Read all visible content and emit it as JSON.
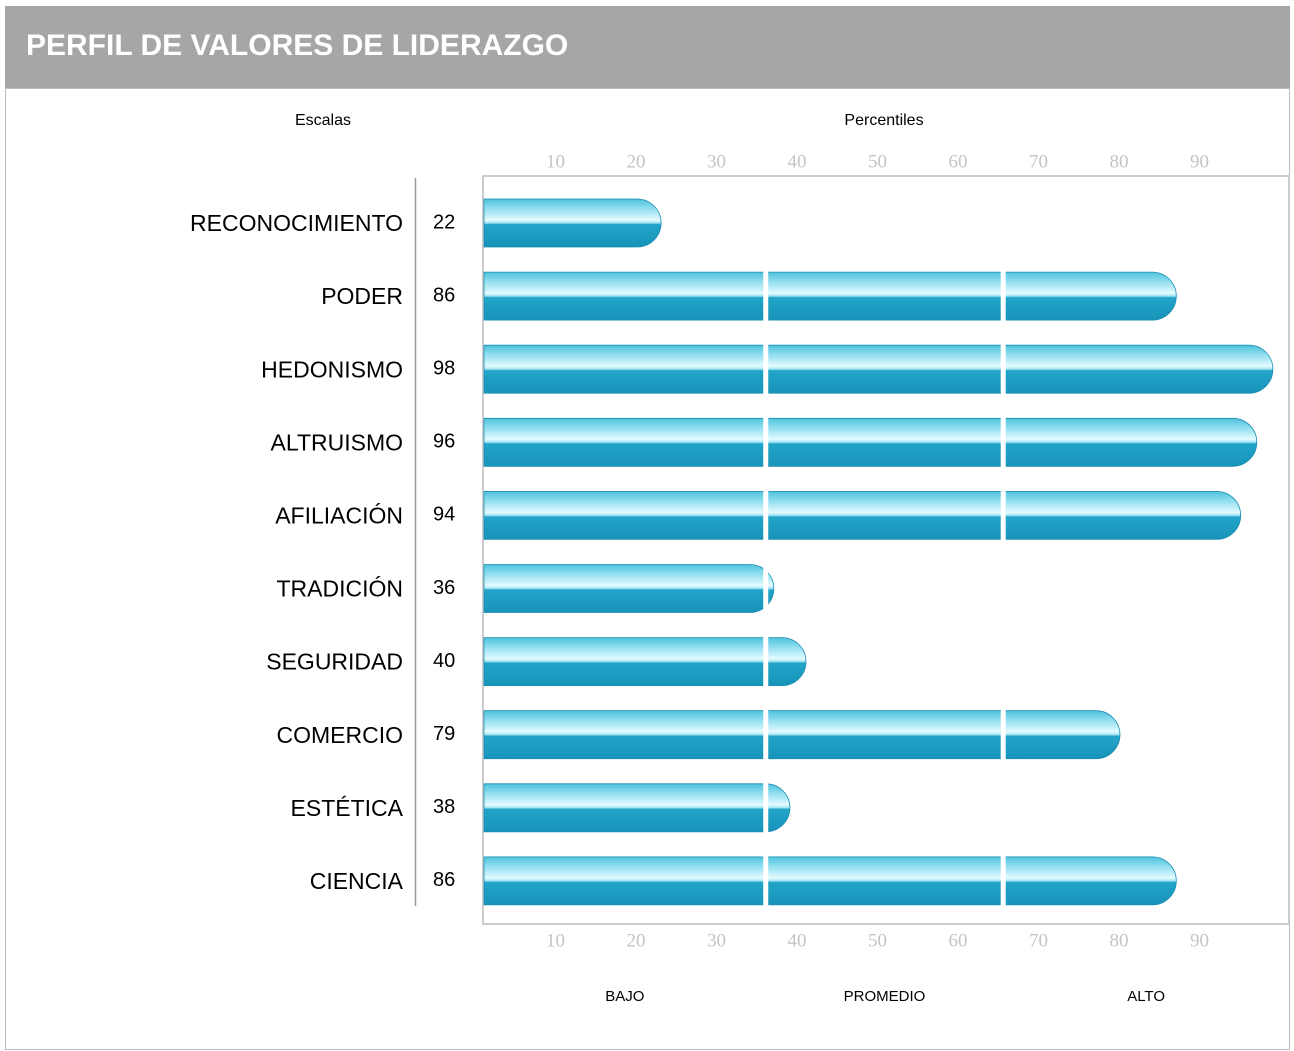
{
  "chart_data": {
    "type": "bar",
    "orientation": "horizontal",
    "title": "PERFIL DE VALORES DE LIDERAZGO",
    "category_header": "Escalas",
    "axis_label": "Percentiles",
    "categories": [
      "RECONOCIMIENTO",
      "PODER",
      "HEDONISMO",
      "ALTRUISMO",
      "AFILIACIÓN",
      "TRADICIÓN",
      "SEGURIDAD",
      "COMERCIO",
      "ESTÉTICA",
      "CIENCIA"
    ],
    "values": [
      22,
      86,
      98,
      96,
      94,
      36,
      40,
      79,
      38,
      86
    ],
    "color": "#1a9fc4",
    "xlim": [
      0,
      100
    ],
    "xticks": [
      10,
      20,
      30,
      40,
      50,
      60,
      70,
      80,
      90
    ],
    "bands": [
      {
        "label": "BAJO",
        "range": [
          0,
          35
        ]
      },
      {
        "label": "PROMEDIO",
        "range": [
          35,
          64.5
        ]
      },
      {
        "label": "ALTO",
        "range": [
          64.5,
          100
        ]
      }
    ]
  }
}
